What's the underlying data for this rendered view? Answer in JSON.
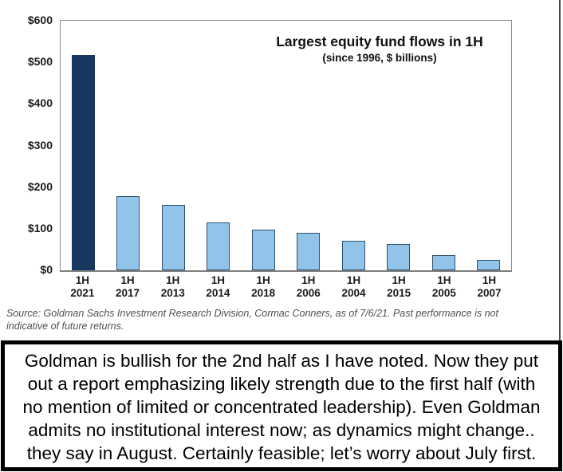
{
  "chart_data": {
    "type": "bar",
    "title": "Largest equity fund flows in 1H",
    "subtitle": "(since 1996, $ billions)",
    "categories": [
      "1H 2021",
      "1H 2017",
      "1H 2013",
      "1H 2014",
      "1H 2018",
      "1H 2006",
      "1H 2004",
      "1H 2015",
      "1H 2005",
      "1H 2007"
    ],
    "values": [
      517,
      178,
      158,
      115,
      98,
      90,
      70,
      63,
      37,
      24
    ],
    "ylabel": "",
    "xlabel": "",
    "ylim": [
      0,
      600
    ],
    "y_ticks": [
      "$600",
      "$500",
      "$400",
      "$300",
      "$200",
      "$100",
      "$0"
    ],
    "grid": false,
    "legend": "none",
    "highlight_index": 0,
    "colors": {
      "highlight_fill": "#17375e",
      "highlight_border": "#17375e",
      "default_fill": "#92c4e9",
      "default_border": "#31506e"
    }
  },
  "source_note": {
    "line1": "Source: Goldman Sachs Investment Research Division, Cormac Conners, as of 7/6/21. Past performance is not",
    "line2": "indicative of future returns."
  },
  "commentary": {
    "lines": [
      "Goldman is bullish for the 2nd half as I have noted. Now they put",
      "out a report emphasizing likely strength due to the first half (with",
      "no mention of limited or concentrated leadership). Even Goldman",
      "admits no institutional interest now; as dynamics might change..",
      "they say in August. Certainly feasible; let’s worry about July first."
    ]
  }
}
